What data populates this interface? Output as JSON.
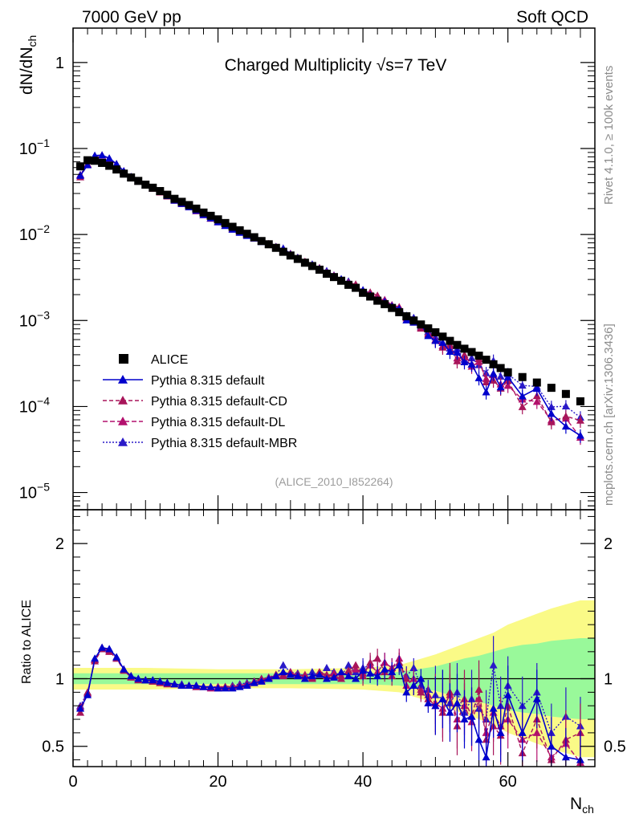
{
  "header": {
    "left": "7000 GeV pp",
    "right": "Soft QCD"
  },
  "side_labels": {
    "top": "Rivet 4.1.0, ≥ 100k events",
    "bottom": "mcplots.cern.ch [arXiv:1306.3436]"
  },
  "chart_data": {
    "type": "scatter",
    "title": "Charged Multiplicity √s=7 TeV",
    "analysis_tag": "(ALICE_2010_I852264)",
    "xlabel_main": "N",
    "xlabel_sub": "ch",
    "ylabel_main": "dN/dN",
    "ylabel_sub": "ch",
    "ratio_ylabel": "Ratio to ALICE",
    "xlim": [
      0,
      72
    ],
    "ylim_log10": [
      -5.2,
      0.4
    ],
    "ratio_ylim": [
      0.35,
      2.25
    ],
    "x_ticks": [
      0,
      20,
      40,
      60
    ],
    "x_tick_labels": [
      "0",
      "20",
      "40",
      "60"
    ],
    "y_ticks": [
      {
        "mant": "1",
        "exp": ""
      },
      {
        "mant": "10",
        "exp": "−1"
      },
      {
        "mant": "10",
        "exp": "−2"
      },
      {
        "mant": "10",
        "exp": "−3"
      },
      {
        "mant": "10",
        "exp": "−4"
      },
      {
        "mant": "10",
        "exp": "−5"
      }
    ],
    "ratio_ticks": [
      "0.5",
      "1",
      "2"
    ],
    "legend": [
      "ALICE",
      "Pythia 8.315 default",
      "Pythia 8.315 default-CD",
      "Pythia 8.315 default-DL",
      "Pythia 8.315 default-MBR"
    ],
    "colors": {
      "data": "#000000",
      "default": "#0000cc",
      "cd": "#a8155a",
      "dl": "#b4106e",
      "mbr": "#2a1ac8",
      "band_green": "#99f99a",
      "band_yellow": "#fafa87"
    },
    "data": {
      "x": [
        1,
        2,
        3,
        4,
        5,
        6,
        7,
        8,
        9,
        10,
        11,
        12,
        13,
        14,
        15,
        16,
        17,
        18,
        19,
        20,
        21,
        22,
        23,
        24,
        25,
        26,
        27,
        28,
        29,
        30,
        31,
        32,
        33,
        34,
        35,
        36,
        37,
        38,
        39,
        40,
        41,
        42,
        43,
        44,
        45,
        46,
        47,
        48,
        49,
        50,
        51,
        52,
        53,
        54,
        55,
        56,
        57,
        58,
        59,
        60,
        62,
        64,
        66,
        68,
        70
      ],
      "y": [
        0.062,
        0.073,
        0.072,
        0.068,
        0.063,
        0.057,
        0.051,
        0.046,
        0.042,
        0.038,
        0.035,
        0.032,
        0.029,
        0.026,
        0.024,
        0.022,
        0.02,
        0.018,
        0.0165,
        0.015,
        0.0136,
        0.0123,
        0.0112,
        0.0102,
        0.0093,
        0.0084,
        0.0077,
        0.007,
        0.0063,
        0.0057,
        0.0052,
        0.0047,
        0.0043,
        0.0039,
        0.0035,
        0.0032,
        0.0029,
        0.0026,
        0.0024,
        0.0021,
        0.0019,
        0.0017,
        0.00155,
        0.0014,
        0.00125,
        0.00112,
        0.001,
        0.0009,
        0.00081,
        0.00073,
        0.00065,
        0.00058,
        0.00052,
        0.00047,
        0.00043,
        0.00039,
        0.00035,
        0.00031,
        0.00028,
        0.00025,
        0.00022,
        0.00019,
        0.000165,
        0.00014,
        0.000115
      ]
    },
    "ratio_band": {
      "x": [
        0,
        10,
        20,
        30,
        40,
        45,
        50,
        52,
        54,
        56,
        58,
        60,
        62,
        64,
        66,
        68,
        70,
        72
      ],
      "green_half": [
        0.04,
        0.04,
        0.04,
        0.04,
        0.04,
        0.05,
        0.09,
        0.12,
        0.15,
        0.17,
        0.2,
        0.23,
        0.25,
        0.26,
        0.28,
        0.29,
        0.3,
        0.3
      ],
      "yellow_half": [
        0.08,
        0.08,
        0.07,
        0.07,
        0.08,
        0.1,
        0.18,
        0.22,
        0.26,
        0.3,
        0.34,
        0.4,
        0.44,
        0.48,
        0.52,
        0.55,
        0.58,
        0.58
      ]
    },
    "series": [
      {
        "name": "Pythia 8.315 default",
        "key": "default",
        "ratio": [
          0.78,
          0.88,
          1.15,
          1.23,
          1.22,
          1.16,
          1.07,
          1.02,
          1.0,
          0.99,
          0.99,
          0.98,
          0.97,
          0.96,
          0.95,
          0.95,
          0.95,
          0.94,
          0.94,
          0.93,
          0.93,
          0.93,
          0.94,
          0.95,
          0.97,
          0.98,
          1.0,
          1.02,
          1.05,
          1.03,
          1.02,
          1.0,
          1.02,
          1.03,
          1.0,
          1.01,
          1.05,
          1.02,
          1.0,
          1.06,
          1.04,
          1.02,
          1.07,
          1.05,
          1.1,
          0.9,
          0.95,
          1.0,
          0.82,
          0.8,
          0.85,
          0.75,
          0.82,
          0.7,
          0.72,
          0.55,
          0.42,
          0.78,
          0.6,
          0.88,
          0.6,
          0.85,
          0.5,
          0.42,
          0.4
        ]
      },
      {
        "name": "Pythia 8.315 default-CD",
        "key": "cd",
        "ratio": [
          0.75,
          0.9,
          1.13,
          1.22,
          1.2,
          1.15,
          1.06,
          1.01,
          0.99,
          0.99,
          0.98,
          0.97,
          0.96,
          0.96,
          0.95,
          0.95,
          0.94,
          0.94,
          0.94,
          0.93,
          0.94,
          0.94,
          0.95,
          0.96,
          0.98,
          1.0,
          1.0,
          1.03,
          1.02,
          1.04,
          1.03,
          1.02,
          1.0,
          1.05,
          1.03,
          1.02,
          1.0,
          1.06,
          1.1,
          1.02,
          1.12,
          1.15,
          1.05,
          1.02,
          1.12,
          1.0,
          0.95,
          0.9,
          0.85,
          0.8,
          0.75,
          0.9,
          0.65,
          0.85,
          0.72,
          0.92,
          0.55,
          0.65,
          0.58,
          0.8,
          0.45,
          0.7,
          0.4,
          0.55,
          0.6
        ]
      },
      {
        "name": "Pythia 8.315 default-DL",
        "key": "dl",
        "ratio": [
          0.79,
          0.89,
          1.14,
          1.23,
          1.21,
          1.15,
          1.07,
          1.02,
          1.0,
          0.99,
          0.98,
          0.97,
          0.97,
          0.96,
          0.95,
          0.95,
          0.94,
          0.94,
          0.93,
          0.94,
          0.94,
          0.94,
          0.95,
          0.96,
          0.97,
          0.99,
          1.01,
          1.02,
          1.03,
          1.05,
          1.02,
          1.03,
          1.01,
          1.04,
          1.02,
          1.04,
          1.02,
          1.05,
          1.07,
          1.04,
          1.1,
          1.05,
          1.12,
          1.08,
          1.15,
          0.95,
          1.0,
          0.92,
          0.88,
          0.82,
          0.78,
          0.88,
          0.7,
          0.8,
          0.68,
          0.85,
          0.6,
          0.75,
          0.65,
          0.7,
          0.55,
          0.6,
          0.42,
          0.52,
          0.38
        ]
      },
      {
        "name": "Pythia 8.315 default-MBR",
        "key": "mbr",
        "ratio": [
          0.8,
          0.9,
          1.14,
          1.23,
          1.22,
          1.16,
          1.07,
          1.02,
          1.0,
          0.99,
          0.99,
          0.98,
          0.97,
          0.96,
          0.96,
          0.95,
          0.95,
          0.94,
          0.94,
          0.94,
          0.94,
          0.95,
          0.96,
          0.97,
          0.98,
          1.0,
          1.01,
          1.03,
          1.1,
          1.05,
          1.04,
          1.02,
          1.05,
          1.03,
          1.08,
          1.05,
          1.02,
          1.1,
          1.05,
          1.08,
          1.1,
          1.05,
          1.12,
          1.08,
          1.12,
          1.02,
          1.08,
          0.95,
          0.92,
          0.88,
          0.85,
          0.82,
          0.9,
          0.75,
          0.85,
          0.78,
          0.7,
          1.1,
          0.8,
          0.95,
          0.8,
          0.9,
          0.6,
          0.72,
          0.65
        ]
      }
    ]
  }
}
